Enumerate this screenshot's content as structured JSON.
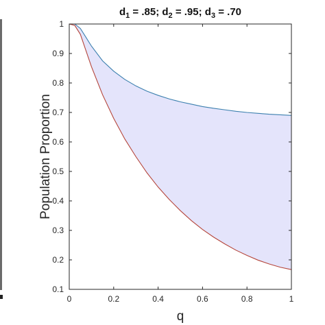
{
  "chart_data": {
    "type": "area",
    "title": {
      "parts": [
        {
          "text": "d",
          "sub": "1",
          "value": " = .85; "
        },
        {
          "text": "d",
          "sub": "2",
          "value": " = .95; "
        },
        {
          "text": "d",
          "sub": "3",
          "value": " = .70"
        }
      ]
    },
    "xlabel": "q",
    "ylabel": "Population Proportion",
    "xlim": [
      0,
      1
    ],
    "ylim": [
      0.1,
      1
    ],
    "xticks": [
      0,
      0.2,
      0.4,
      0.6,
      0.8,
      1
    ],
    "xtick_labels": [
      "0",
      "0.2",
      "0.4",
      "0.6",
      "0.8",
      "1"
    ],
    "yticks": [
      0.1,
      0.2,
      0.3,
      0.4,
      0.5,
      0.6,
      0.7,
      0.8,
      0.9,
      1
    ],
    "ytick_labels": [
      "0.1",
      "0.2",
      "0.3",
      "0.4",
      "0.5",
      "0.6",
      "0.7",
      "0.8",
      "0.9",
      "1"
    ],
    "grid": false,
    "colors": {
      "upper_line": "#3b7fae",
      "lower_line": "#b5453a",
      "fill": "#e4e4fb"
    },
    "x": [
      0,
      0.025,
      0.05,
      0.075,
      0.1,
      0.15,
      0.2,
      0.25,
      0.3,
      0.35,
      0.4,
      0.45,
      0.5,
      0.55,
      0.6,
      0.65,
      0.7,
      0.75,
      0.8,
      0.85,
      0.9,
      0.95,
      1.0
    ],
    "series": [
      {
        "role": "upper",
        "values": [
          1.0,
          1.0,
          0.985,
          0.955,
          0.925,
          0.875,
          0.84,
          0.812,
          0.79,
          0.772,
          0.758,
          0.746,
          0.736,
          0.728,
          0.72,
          0.714,
          0.709,
          0.704,
          0.7,
          0.697,
          0.694,
          0.692,
          0.69
        ]
      },
      {
        "role": "lower",
        "values": [
          1.0,
          0.995,
          0.965,
          0.91,
          0.855,
          0.76,
          0.68,
          0.61,
          0.55,
          0.495,
          0.447,
          0.405,
          0.367,
          0.333,
          0.303,
          0.277,
          0.254,
          0.233,
          0.215,
          0.199,
          0.186,
          0.175,
          0.167
        ]
      }
    ]
  }
}
